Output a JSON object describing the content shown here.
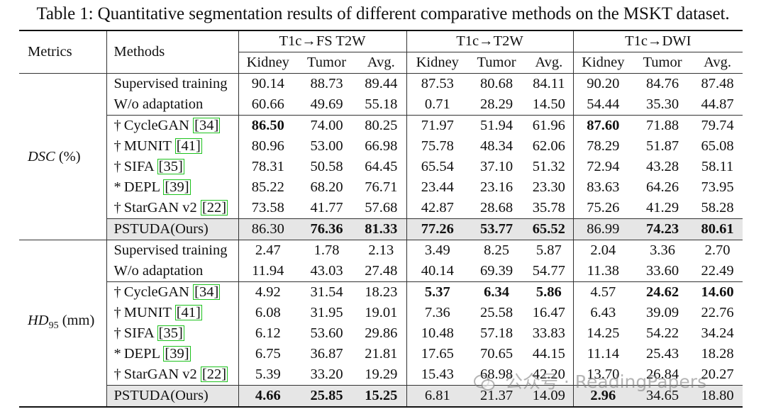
{
  "caption": "Table 1: Quantitative segmentation results of different comparative methods on the MSKT dataset.",
  "header": {
    "metrics": "Metrics",
    "methods": "Methods",
    "groups": [
      "T1c→FS T2W",
      "T1c→T2W",
      "T1c→DWI"
    ],
    "subcols": [
      "Kidney",
      "Tumor",
      "Avg."
    ]
  },
  "sections": [
    {
      "metric": "DSC",
      "unit": "(%)",
      "rows": [
        {
          "prefix": "",
          "name": "Supervised training",
          "ref": "",
          "values": [
            "90.14",
            "88.73",
            "89.44",
            "87.53",
            "80.68",
            "84.11",
            "90.20",
            "84.76",
            "87.48"
          ],
          "bold": []
        },
        {
          "prefix": "",
          "name": "W/o adaptation",
          "ref": "",
          "values": [
            "60.66",
            "49.69",
            "55.18",
            "0.71",
            "28.29",
            "14.50",
            "54.44",
            "35.30",
            "44.87"
          ],
          "bold": []
        },
        {
          "prefix": "†",
          "name": "CycleGAN",
          "ref": "34",
          "values": [
            "86.50",
            "74.00",
            "80.25",
            "71.97",
            "51.94",
            "61.96",
            "87.60",
            "71.88",
            "79.74"
          ],
          "bold": [
            0,
            6
          ]
        },
        {
          "prefix": "†",
          "name": "MUNIT",
          "ref": "41",
          "values": [
            "80.96",
            "53.00",
            "66.98",
            "75.78",
            "48.34",
            "62.06",
            "78.29",
            "51.87",
            "65.08"
          ],
          "bold": []
        },
        {
          "prefix": "†",
          "name": "SIFA",
          "ref": "35",
          "values": [
            "78.31",
            "50.58",
            "64.45",
            "65.54",
            "37.10",
            "51.32",
            "72.94",
            "43.28",
            "58.11"
          ],
          "bold": []
        },
        {
          "prefix": "*",
          "name": "DEPL",
          "ref": "39",
          "values": [
            "85.22",
            "68.20",
            "76.71",
            "23.44",
            "23.16",
            "23.30",
            "83.63",
            "64.26",
            "73.95"
          ],
          "bold": []
        },
        {
          "prefix": "†",
          "name": "StarGAN v2",
          "ref": "22",
          "values": [
            "73.58",
            "41.77",
            "57.68",
            "42.87",
            "28.68",
            "35.78",
            "75.26",
            "41.29",
            "58.28"
          ],
          "bold": []
        },
        {
          "prefix": "",
          "name": "PSTUDA(Ours)",
          "ref": "",
          "values": [
            "86.30",
            "76.36",
            "81.33",
            "77.26",
            "53.77",
            "65.52",
            "86.99",
            "74.23",
            "80.61"
          ],
          "bold": [
            1,
            2,
            3,
            4,
            5,
            7,
            8
          ],
          "highlight": true
        }
      ]
    },
    {
      "metric": "HD",
      "metric_sub": "95",
      "unit": "(mm)",
      "rows": [
        {
          "prefix": "",
          "name": "Supervised training",
          "ref": "",
          "values": [
            "2.47",
            "1.78",
            "2.13",
            "3.49",
            "8.25",
            "5.87",
            "2.04",
            "3.36",
            "2.70"
          ],
          "bold": []
        },
        {
          "prefix": "",
          "name": "W/o adaptation",
          "ref": "",
          "values": [
            "11.94",
            "43.03",
            "27.48",
            "40.14",
            "69.39",
            "54.77",
            "11.38",
            "33.60",
            "22.49"
          ],
          "bold": []
        },
        {
          "prefix": "†",
          "name": "CycleGAN",
          "ref": "34",
          "values": [
            "4.92",
            "31.54",
            "18.23",
            "5.37",
            "6.34",
            "5.86",
            "4.57",
            "24.62",
            "14.60"
          ],
          "bold": [
            3,
            4,
            5,
            7,
            8
          ]
        },
        {
          "prefix": "†",
          "name": "MUNIT",
          "ref": "41",
          "values": [
            "6.08",
            "31.95",
            "19.01",
            "7.36",
            "25.58",
            "16.47",
            "6.43",
            "39.09",
            "22.76"
          ],
          "bold": []
        },
        {
          "prefix": "†",
          "name": "SIFA",
          "ref": "35",
          "values": [
            "6.12",
            "53.60",
            "29.86",
            "10.48",
            "57.18",
            "33.83",
            "14.25",
            "54.22",
            "34.24"
          ],
          "bold": []
        },
        {
          "prefix": "*",
          "name": "DEPL",
          "ref": "39",
          "values": [
            "6.75",
            "36.87",
            "21.81",
            "17.65",
            "70.65",
            "44.15",
            "11.14",
            "25.43",
            "18.28"
          ],
          "bold": []
        },
        {
          "prefix": "†",
          "name": "StarGAN v2",
          "ref": "22",
          "values": [
            "5.39",
            "33.20",
            "19.29",
            "15.43",
            "68.98",
            "42.20",
            "13.70",
            "26.84",
            "20.27"
          ],
          "bold": []
        },
        {
          "prefix": "",
          "name": "PSTUDA(Ours)",
          "ref": "",
          "values": [
            "4.66",
            "25.85",
            "15.25",
            "6.81",
            "21.37",
            "14.09",
            "2.96",
            "34.65",
            "18.80"
          ],
          "bold": [
            0,
            1,
            2,
            6
          ],
          "highlight": true
        }
      ]
    }
  ],
  "watermark": "公众号 · ReadingPapers"
}
